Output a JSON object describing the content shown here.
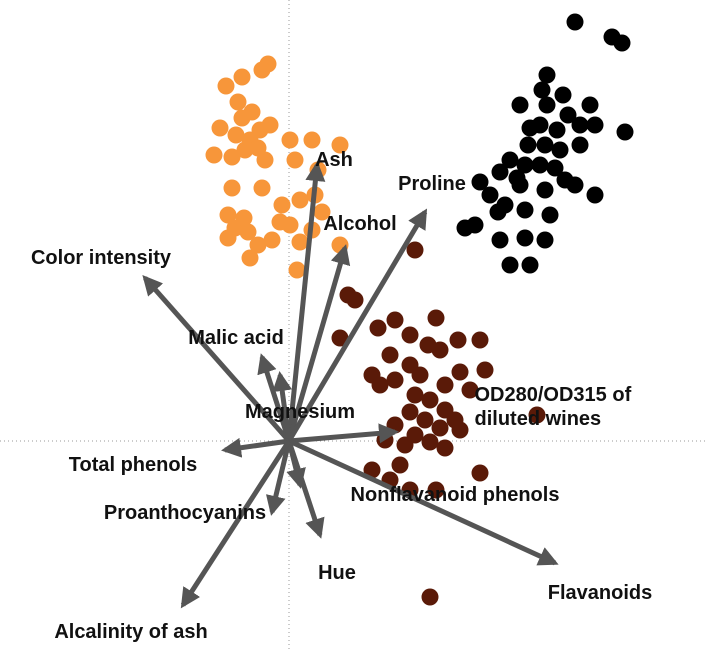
{
  "chart_data": {
    "type": "biplot",
    "xlim": [
      -2.89,
      4.17
    ],
    "ylim": [
      -2.1,
      4.41
    ],
    "zero_lines": true,
    "series": [
      {
        "name": null,
        "color": "#f7963a",
        "x": [
          -0.21,
          -0.27,
          -0.47,
          -0.63,
          -0.51,
          -0.37,
          -0.69,
          -0.47,
          -0.53,
          -0.39,
          -0.29,
          -0.19,
          -0.44,
          -0.31,
          -0.57,
          -0.75,
          -0.24,
          0.01,
          0.23,
          0.51,
          0.06,
          0.29,
          -0.27,
          -0.57,
          0.11,
          -0.07,
          0.26,
          0.33,
          -0.61,
          -0.54,
          -0.41,
          -0.09,
          0.01,
          -0.31,
          -0.17,
          0.11,
          0.51,
          -0.61,
          -0.39,
          0.08,
          0.23,
          -0.45
        ],
        "values": [
          3.77,
          3.71,
          3.64,
          3.55,
          3.39,
          3.29,
          3.13,
          3.23,
          3.06,
          3.01,
          3.11,
          3.16,
          2.91,
          2.93,
          2.84,
          2.86,
          2.81,
          3.01,
          3.01,
          2.96,
          2.81,
          2.71,
          2.53,
          2.53,
          2.41,
          2.36,
          2.46,
          2.29,
          2.26,
          2.13,
          2.09,
          2.19,
          2.16,
          1.96,
          2.01,
          1.99,
          1.96,
          2.03,
          1.83,
          1.71,
          2.11,
          2.23
        ]
      },
      {
        "name": null,
        "color": "#000000",
        "x": [
          2.86,
          3.23,
          3.33,
          2.58,
          2.53,
          2.31,
          2.58,
          2.79,
          2.91,
          2.68,
          3.06,
          3.36,
          3.01,
          2.39,
          2.56,
          2.71,
          2.21,
          2.36,
          2.51,
          2.66,
          2.11,
          1.91,
          2.31,
          2.86,
          2.01,
          2.56,
          2.76,
          3.06,
          2.16,
          2.36,
          2.61,
          1.76,
          1.86,
          2.11,
          2.36,
          2.56,
          2.21,
          2.41,
          2.09,
          2.41,
          2.74,
          2.91,
          2.51,
          2.28
        ],
        "values": [
          4.19,
          4.04,
          3.98,
          3.66,
          3.51,
          3.36,
          3.36,
          3.26,
          3.16,
          3.11,
          3.16,
          3.09,
          3.36,
          2.96,
          2.96,
          2.91,
          2.81,
          2.76,
          2.76,
          2.73,
          2.69,
          2.59,
          2.56,
          2.56,
          2.46,
          2.51,
          2.61,
          2.46,
          2.36,
          2.31,
          2.26,
          2.13,
          2.16,
          2.01,
          2.03,
          2.01,
          1.76,
          1.76,
          2.29,
          3.13,
          3.46,
          2.96,
          3.16,
          2.63
        ]
      },
      {
        "name": null,
        "color": "#5a1a08",
        "x": [
          0.59,
          0.66,
          1.26,
          0.51,
          0.89,
          1.06,
          1.21,
          1.47,
          1.39,
          1.51,
          1.69,
          1.91,
          1.01,
          1.21,
          0.83,
          1.06,
          1.31,
          1.56,
          1.71,
          1.96,
          1.26,
          1.41,
          1.56,
          1.21,
          1.36,
          1.51,
          1.66,
          1.06,
          1.26,
          1.41,
          1.56,
          1.16,
          0.96,
          1.71,
          1.11,
          0.83,
          1.01,
          1.91,
          1.47,
          1.21,
          2.48,
          1.41,
          0.91,
          1.81
        ],
        "values": [
          1.46,
          1.41,
          1.91,
          1.03,
          1.13,
          1.21,
          1.06,
          1.23,
          0.96,
          0.91,
          1.01,
          1.01,
          0.86,
          0.76,
          0.66,
          0.61,
          0.66,
          0.56,
          0.69,
          0.71,
          0.46,
          0.41,
          0.31,
          0.29,
          0.21,
          0.13,
          0.21,
          0.16,
          0.06,
          -0.01,
          -0.07,
          -0.04,
          0.01,
          0.11,
          -0.24,
          -0.29,
          -0.39,
          -0.32,
          -0.49,
          -0.49,
          0.26,
          -1.56,
          0.56,
          0.51
        ]
      }
    ],
    "loadings_color": "#555555",
    "loadings": [
      {
        "name": "Ash",
        "x": 0.28,
        "y": 2.76
      },
      {
        "name": "Alcohol",
        "x": 0.56,
        "y": 1.93
      },
      {
        "name": "Proline",
        "x": 1.36,
        "y": 2.29
      },
      {
        "name": "Color intensity",
        "x": -1.44,
        "y": 1.63
      },
      {
        "name": "Malic acid",
        "x": -0.27,
        "y": 0.84
      },
      {
        "name": "Magnesium",
        "x": -0.09,
        "y": 0.66
      },
      {
        "name": "OD280/OD315 of diluted wines",
        "x": 1.06,
        "y": 0.09
      },
      {
        "name": "Total phenols",
        "x": -0.64,
        "y": -0.09
      },
      {
        "name": "Proanthocyanins",
        "x": -0.17,
        "y": -0.71
      },
      {
        "name": "Hue",
        "x": 0.31,
        "y": -0.94
      },
      {
        "name": "Nonflavanoid phenols",
        "x": 0.11,
        "y": -0.44
      },
      {
        "name": "Flavanoids",
        "x": 2.66,
        "y": -1.22
      },
      {
        "name": "Alcalinity of ash",
        "x": -1.06,
        "y": -1.64
      }
    ]
  }
}
